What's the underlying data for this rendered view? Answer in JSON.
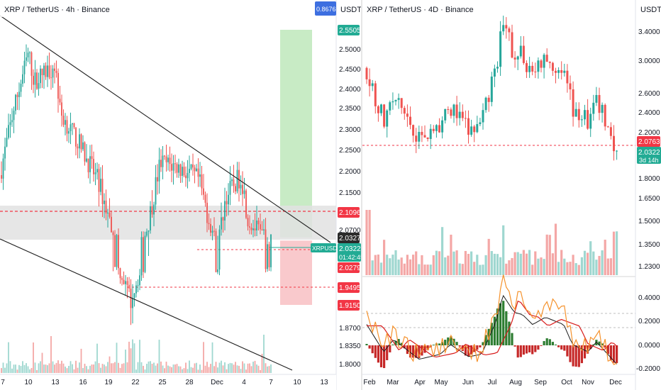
{
  "colors": {
    "up": "#26a69a",
    "down": "#ef5350",
    "vol_up": "#9fd7d0",
    "vol_down": "#f4a7a6",
    "profit_zone": "#c8ebc5",
    "loss_zone": "#f9c9cc",
    "resistance_band": "#e2e2e2",
    "red_label": "#f23645",
    "green_label": "#22ab94",
    "dark_label": "#2b2b2b",
    "blue_label": "#3d6fe0",
    "trendline": "#1e1e1e",
    "macd": "#1a1a1a",
    "signal": "#d81b1b",
    "rsi": "#f5922c",
    "hist_up": "#2e7d32",
    "hist_down": "#c62828"
  },
  "left_chart": {
    "title": "XRP / TetherUS · 4h · Binance",
    "currency": "USDT",
    "price_ticks": [
      "2.5000",
      "2.4500",
      "2.4000",
      "2.3500",
      "2.3000",
      "2.2500",
      "2.2000",
      "2.1500",
      "2.0700",
      "1.8700",
      "1.8350",
      "1.8000"
    ],
    "date_ticks": [
      "7",
      "10",
      "13",
      "16",
      "19",
      "22",
      "25",
      "28",
      "Dec",
      "4",
      "7",
      "10",
      "13"
    ],
    "labels": {
      "top_blue": "0.8676",
      "target": "2.5505",
      "resistance": "2.1096",
      "current_dark": "2.0327",
      "symbol": "XRPUSDT",
      "current_price": "2.0322",
      "countdown": "01:42:45",
      "entry": "2.0279",
      "support": "1.9495",
      "stop": "1.9150"
    }
  },
  "right_chart": {
    "title": "XRP / TetherUS · 4D · Binance",
    "currency": "USDT",
    "price_ticks": [
      "3.4000",
      "3.0000",
      "2.6000",
      "2.4000",
      "2.2000",
      "1.8000",
      "1.6500",
      "1.5000",
      "1.3500",
      "1.2300"
    ],
    "date_ticks": [
      "Feb",
      "Mar",
      "Apr",
      "May",
      "Jun",
      "Jul",
      "Aug",
      "Sep",
      "Oct",
      "Nov",
      "Dec"
    ],
    "labels": {
      "prev_close": "2.0763",
      "current_price": "2.0322",
      "countdown": "3d 14h"
    },
    "macd_ticks": [
      "0.4000",
      "0.2000",
      "0.0000",
      "-0.2000"
    ]
  },
  "chart_data": [
    {
      "type": "candlestick",
      "title": "XRP / TetherUS · 4h · Binance",
      "x_range": [
        "Nov 7",
        "Dec 13"
      ],
      "ylim": [
        1.78,
        2.58
      ],
      "close_path_approx": [
        {
          "x": "Nov 7",
          "y": 2.19
        },
        {
          "x": "Nov 9",
          "y": 2.34
        },
        {
          "x": "Nov 10",
          "y": 2.49
        },
        {
          "x": "Nov 11",
          "y": 2.42
        },
        {
          "x": "Nov 13",
          "y": 2.46
        },
        {
          "x": "Nov 14",
          "y": 2.34
        },
        {
          "x": "Nov 16",
          "y": 2.27
        },
        {
          "x": "Nov 18",
          "y": 2.17
        },
        {
          "x": "Nov 19",
          "y": 2.04
        },
        {
          "x": "Nov 20",
          "y": 1.99
        },
        {
          "x": "Nov 21",
          "y": 1.92
        },
        {
          "x": "Nov 22",
          "y": 1.98
        },
        {
          "x": "Nov 24",
          "y": 2.05
        },
        {
          "x": "Nov 25",
          "y": 2.22
        },
        {
          "x": "Nov 27",
          "y": 2.21
        },
        {
          "x": "Nov 29",
          "y": 2.18
        },
        {
          "x": "Dec 1",
          "y": 2.02
        },
        {
          "x": "Dec 2",
          "y": 2.14
        },
        {
          "x": "Dec 3",
          "y": 2.19
        },
        {
          "x": "Dec 5",
          "y": 2.09
        },
        {
          "x": "Dec 7",
          "y": 2.03
        }
      ],
      "levels": {
        "target": 2.5505,
        "resistance": 2.1096,
        "entry": 2.0279,
        "support": 1.9495,
        "stop": 1.915,
        "current": 2.0322
      }
    },
    {
      "type": "candlestick",
      "title": "XRP / TetherUS · 4D · Binance",
      "x_range": [
        "Feb",
        "Dec"
      ],
      "ylim": [
        1.2,
        3.6
      ],
      "close_path_approx": [
        {
          "x": "Feb",
          "y": 2.9
        },
        {
          "x": "Mar",
          "y": 2.3
        },
        {
          "x": "Mar mid",
          "y": 2.55
        },
        {
          "x": "Apr",
          "y": 2.15
        },
        {
          "x": "Apr end",
          "y": 2.2
        },
        {
          "x": "May",
          "y": 2.25
        },
        {
          "x": "May mid",
          "y": 2.45
        },
        {
          "x": "Jun",
          "y": 2.2
        },
        {
          "x": "Jun end",
          "y": 2.25
        },
        {
          "x": "Jul",
          "y": 2.9
        },
        {
          "x": "Jul mid",
          "y": 3.45
        },
        {
          "x": "Aug",
          "y": 3.1
        },
        {
          "x": "Aug mid",
          "y": 3.05
        },
        {
          "x": "Sep",
          "y": 2.85
        },
        {
          "x": "Sep mid",
          "y": 3.0
        },
        {
          "x": "Oct",
          "y": 2.85
        },
        {
          "x": "Oct mid",
          "y": 2.45
        },
        {
          "x": "Nov",
          "y": 2.3
        },
        {
          "x": "Nov mid",
          "y": 2.5
        },
        {
          "x": "Dec",
          "y": 2.03
        }
      ],
      "macd_range": [
        -0.22,
        0.55
      ]
    }
  ]
}
